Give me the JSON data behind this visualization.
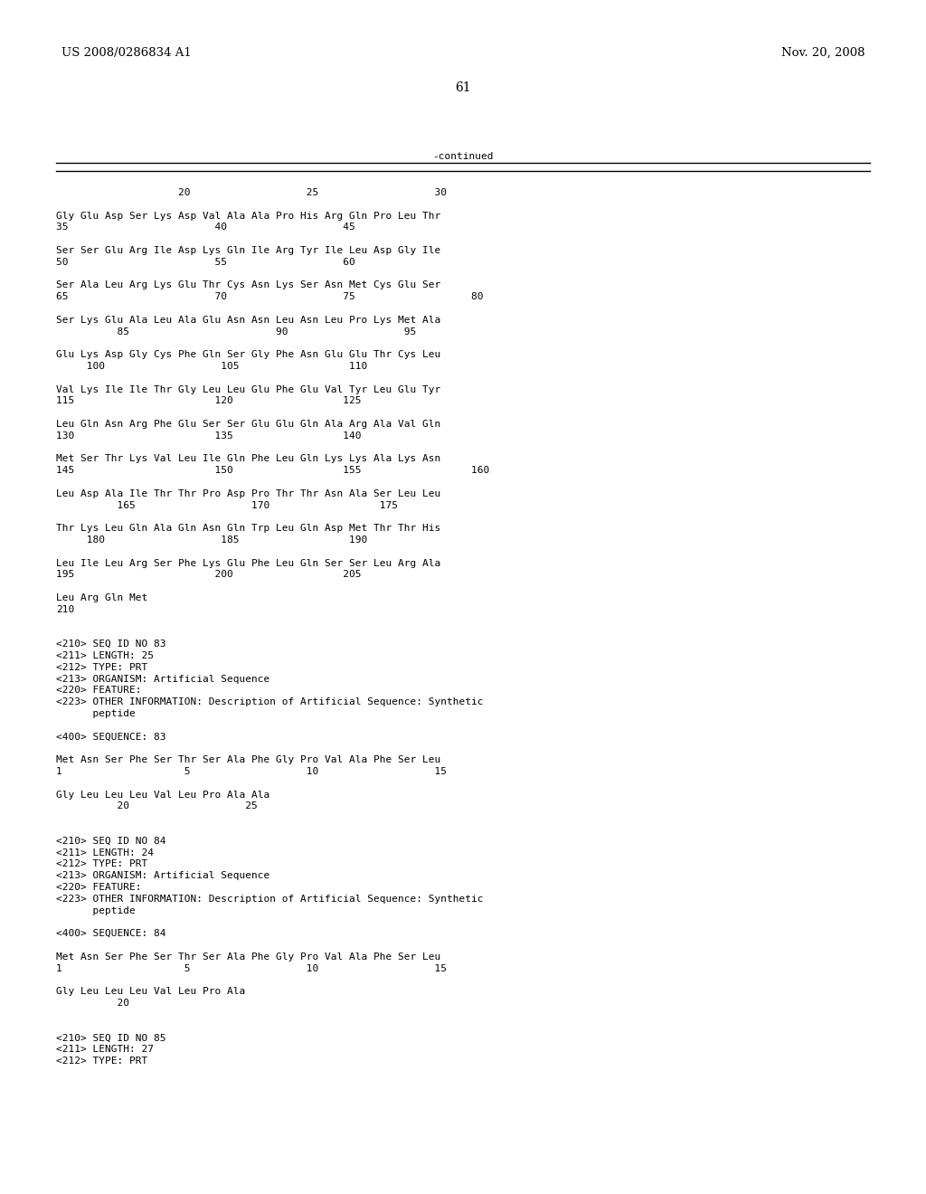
{
  "header_left": "US 2008/0286834 A1",
  "header_right": "Nov. 20, 2008",
  "page_number": "61",
  "continued_label": "-continued",
  "background_color": "#ffffff",
  "text_color": "#000000",
  "font_size_header": 9.5,
  "font_size_body": 8.0,
  "font_size_page": 10.0,
  "content": [
    "                    20                   25                   30",
    "",
    "Gly Glu Asp Ser Lys Asp Val Ala Ala Pro His Arg Gln Pro Leu Thr",
    "35                        40                   45",
    "",
    "Ser Ser Glu Arg Ile Asp Lys Gln Ile Arg Tyr Ile Leu Asp Gly Ile",
    "50                        55                   60",
    "",
    "Ser Ala Leu Arg Lys Glu Thr Cys Asn Lys Ser Asn Met Cys Glu Ser",
    "65                        70                   75                   80",
    "",
    "Ser Lys Glu Ala Leu Ala Glu Asn Asn Leu Asn Leu Pro Lys Met Ala",
    "          85                        90                   95",
    "",
    "Glu Lys Asp Gly Cys Phe Gln Ser Gly Phe Asn Glu Glu Thr Cys Leu",
    "     100                   105                  110",
    "",
    "Val Lys Ile Ile Thr Gly Leu Leu Glu Phe Glu Val Tyr Leu Glu Tyr",
    "115                       120                  125",
    "",
    "Leu Gln Asn Arg Phe Glu Ser Ser Glu Glu Gln Ala Arg Ala Val Gln",
    "130                       135                  140",
    "",
    "Met Ser Thr Lys Val Leu Ile Gln Phe Leu Gln Lys Lys Ala Lys Asn",
    "145                       150                  155                  160",
    "",
    "Leu Asp Ala Ile Thr Thr Pro Asp Pro Thr Thr Asn Ala Ser Leu Leu",
    "          165                   170                  175",
    "",
    "Thr Lys Leu Gln Ala Gln Asn Gln Trp Leu Gln Asp Met Thr Thr His",
    "     180                   185                  190",
    "",
    "Leu Ile Leu Arg Ser Phe Lys Glu Phe Leu Gln Ser Ser Leu Arg Ala",
    "195                       200                  205",
    "",
    "Leu Arg Gln Met",
    "210",
    "",
    "",
    "<210> SEQ ID NO 83",
    "<211> LENGTH: 25",
    "<212> TYPE: PRT",
    "<213> ORGANISM: Artificial Sequence",
    "<220> FEATURE:",
    "<223> OTHER INFORMATION: Description of Artificial Sequence: Synthetic",
    "      peptide",
    "",
    "<400> SEQUENCE: 83",
    "",
    "Met Asn Ser Phe Ser Thr Ser Ala Phe Gly Pro Val Ala Phe Ser Leu",
    "1                    5                   10                   15",
    "",
    "Gly Leu Leu Leu Val Leu Pro Ala Ala",
    "          20                   25",
    "",
    "",
    "<210> SEQ ID NO 84",
    "<211> LENGTH: 24",
    "<212> TYPE: PRT",
    "<213> ORGANISM: Artificial Sequence",
    "<220> FEATURE:",
    "<223> OTHER INFORMATION: Description of Artificial Sequence: Synthetic",
    "      peptide",
    "",
    "<400> SEQUENCE: 84",
    "",
    "Met Asn Ser Phe Ser Thr Ser Ala Phe Gly Pro Val Ala Phe Ser Leu",
    "1                    5                   10                   15",
    "",
    "Gly Leu Leu Leu Val Leu Pro Ala",
    "          20",
    "",
    "",
    "<210> SEQ ID NO 85",
    "<211> LENGTH: 27",
    "<212> TYPE: PRT"
  ]
}
